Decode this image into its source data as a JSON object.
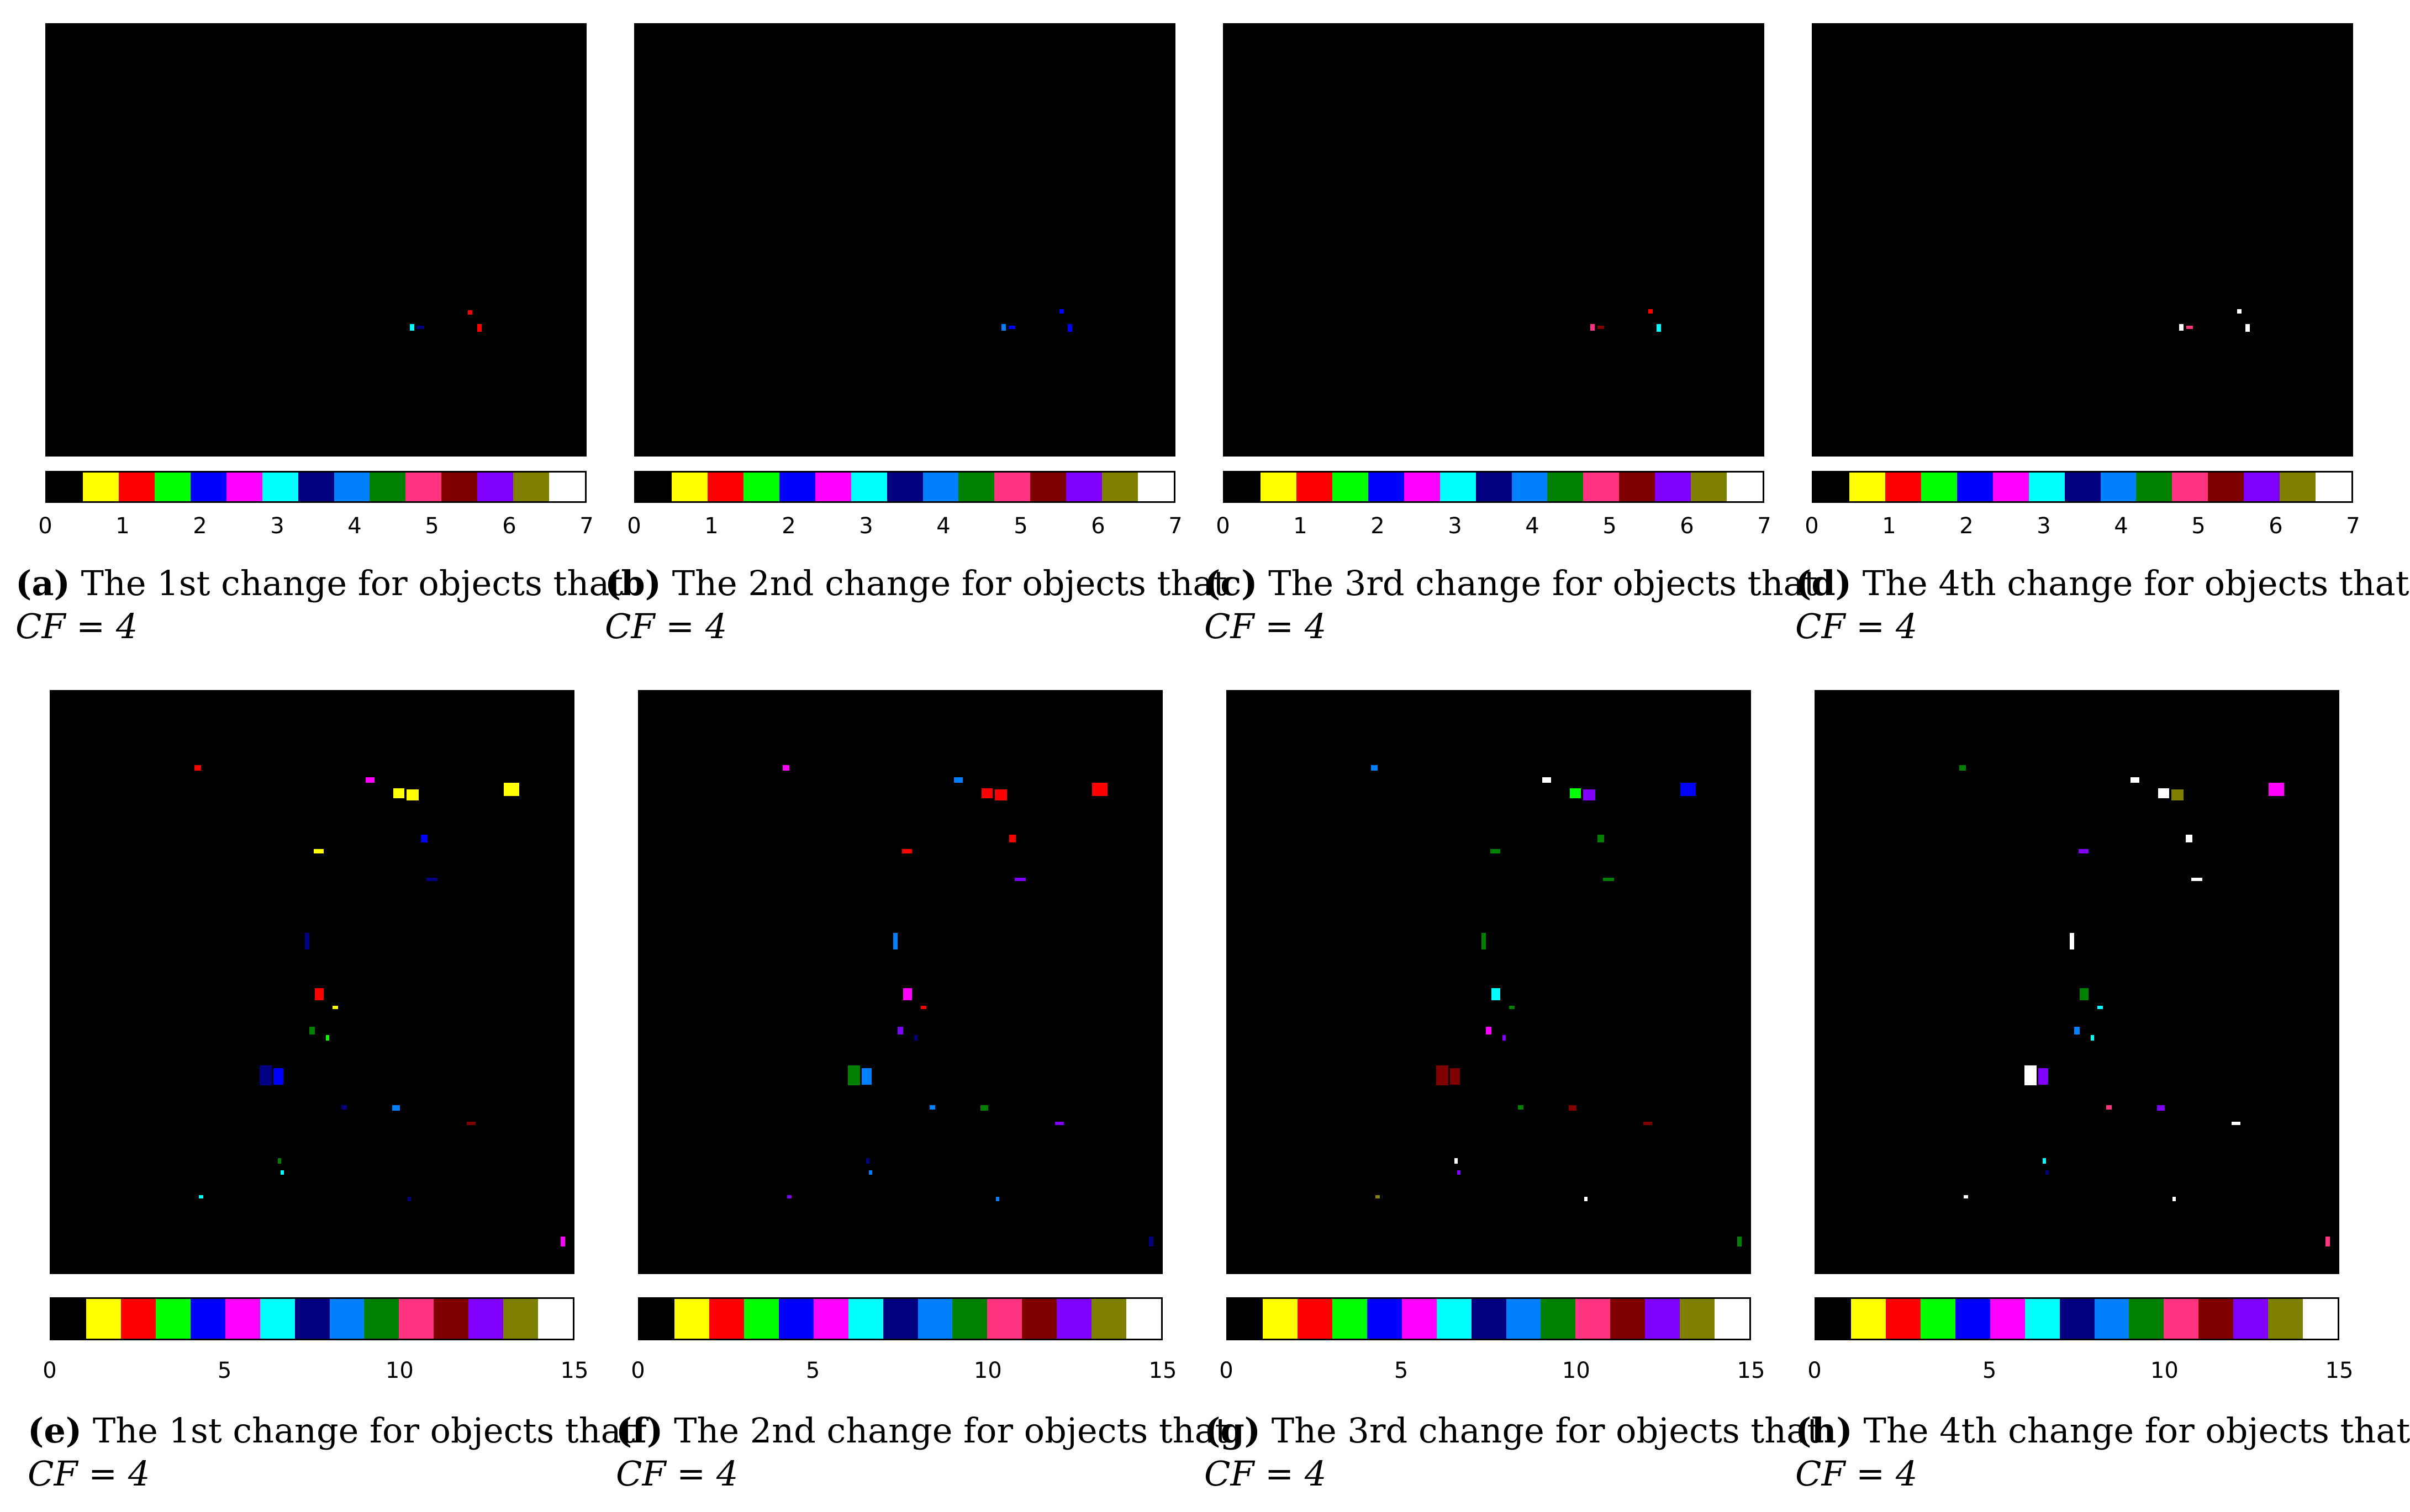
{
  "palette": [
    "#000000",
    "#ffff00",
    "#ff0000",
    "#00ff00",
    "#0000ff",
    "#ff00ff",
    "#00ffff",
    "#000080",
    "#0080ff",
    "#008000",
    "#ff3380",
    "#800000",
    "#8000ff",
    "#808000",
    "#ffffff"
  ],
  "rows": [
    {
      "ticks": [
        "0",
        "1",
        "2",
        "3",
        "4",
        "5",
        "6",
        "7"
      ],
      "panels": [
        {
          "letter": "(a)",
          "text": "The 1st change for objects that",
          "formula": "CF = 4"
        },
        {
          "letter": "(b)",
          "text": "The 2nd change for objects that",
          "formula": "CF = 4"
        },
        {
          "letter": "(c)",
          "text": "The 3rd change for objects that",
          "formula": "CF = 4"
        },
        {
          "letter": "(d)",
          "text": "The 4th change for objects that",
          "formula": "CF = 4"
        }
      ]
    },
    {
      "ticks": [
        "0",
        "5",
        "10",
        "15"
      ],
      "panels": [
        {
          "letter": "(e)",
          "text": "The 1st change for objects that",
          "formula": "CF = 4"
        },
        {
          "letter": "(f)",
          "text": "The 2nd change for objects that",
          "formula": "CF = 4"
        },
        {
          "letter": "(g)",
          "text": "The 3rd change for objects that",
          "formula": "CF = 4"
        },
        {
          "letter": "(h)",
          "text": "The 4th change for objects that",
          "formula": "CF = 4"
        }
      ]
    }
  ]
}
